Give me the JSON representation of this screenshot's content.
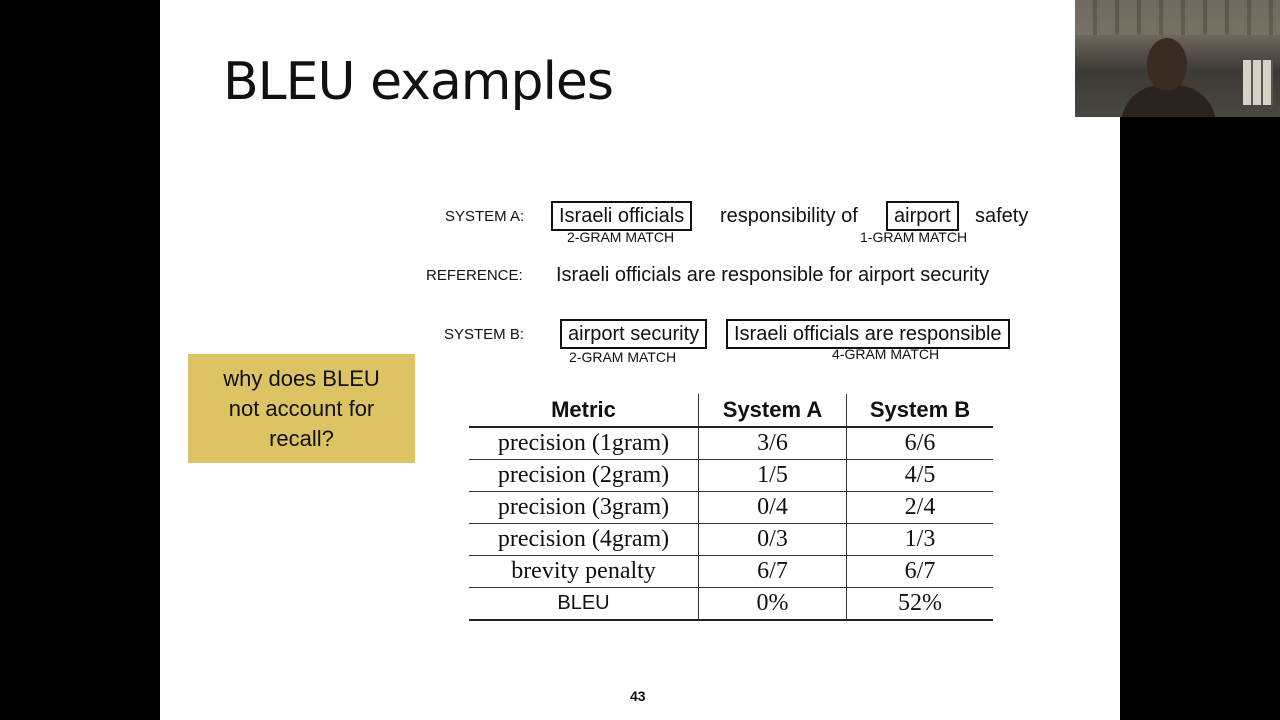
{
  "slide": {
    "title": "BLEU examples",
    "page_number": "43"
  },
  "system_a": {
    "label": "SYSTEM A:",
    "box1": "Israeli officials",
    "middle": "responsibility of",
    "box2": "airport",
    "tail": "safety",
    "match1": "2-GRAM MATCH",
    "match2": "1-GRAM MATCH"
  },
  "reference": {
    "label": "REFERENCE:",
    "text": "Israeli officials are responsible for airport security"
  },
  "system_b": {
    "label": "SYSTEM B:",
    "box1": "airport security",
    "box2": "Israeli officials are responsible",
    "match1": "2-GRAM MATCH",
    "match2": "4-GRAM MATCH"
  },
  "callout": {
    "text": "why does BLEU not account for recall?"
  },
  "table": {
    "headers": [
      "Metric",
      "System A",
      "System B"
    ],
    "rows": [
      [
        "precision (1gram)",
        "3/6",
        "6/6"
      ],
      [
        "precision (2gram)",
        "1/5",
        "4/5"
      ],
      [
        "precision (3gram)",
        "0/4",
        "2/4"
      ],
      [
        "precision (4gram)",
        "0/3",
        "1/3"
      ],
      [
        "brevity penalty",
        "6/7",
        "6/7"
      ],
      [
        "BLEU",
        "0%",
        "52%"
      ]
    ]
  },
  "colors": {
    "callout_bg": "#dcc464",
    "slide_bg": "#ffffff",
    "background": "#000000"
  }
}
